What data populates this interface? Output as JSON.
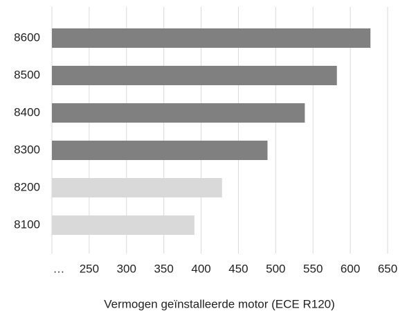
{
  "chart_data": {
    "type": "barh",
    "x_label": "Vermogen geïnstalleerde motor (ECE R120)",
    "categories": [
      "8600",
      "8500",
      "8400",
      "8300",
      "8200",
      "8100"
    ],
    "values": [
      627,
      582,
      539,
      489,
      428,
      391
    ],
    "colors": [
      "#808080",
      "#808080",
      "#808080",
      "#808080",
      "#d9d9d9",
      "#d9d9d9"
    ],
    "xlim": [
      200,
      650
    ],
    "xticks": [
      {
        "value": 200,
        "label": "…"
      },
      250,
      300,
      350,
      400,
      450,
      500,
      550,
      600,
      650
    ],
    "grid": true
  }
}
